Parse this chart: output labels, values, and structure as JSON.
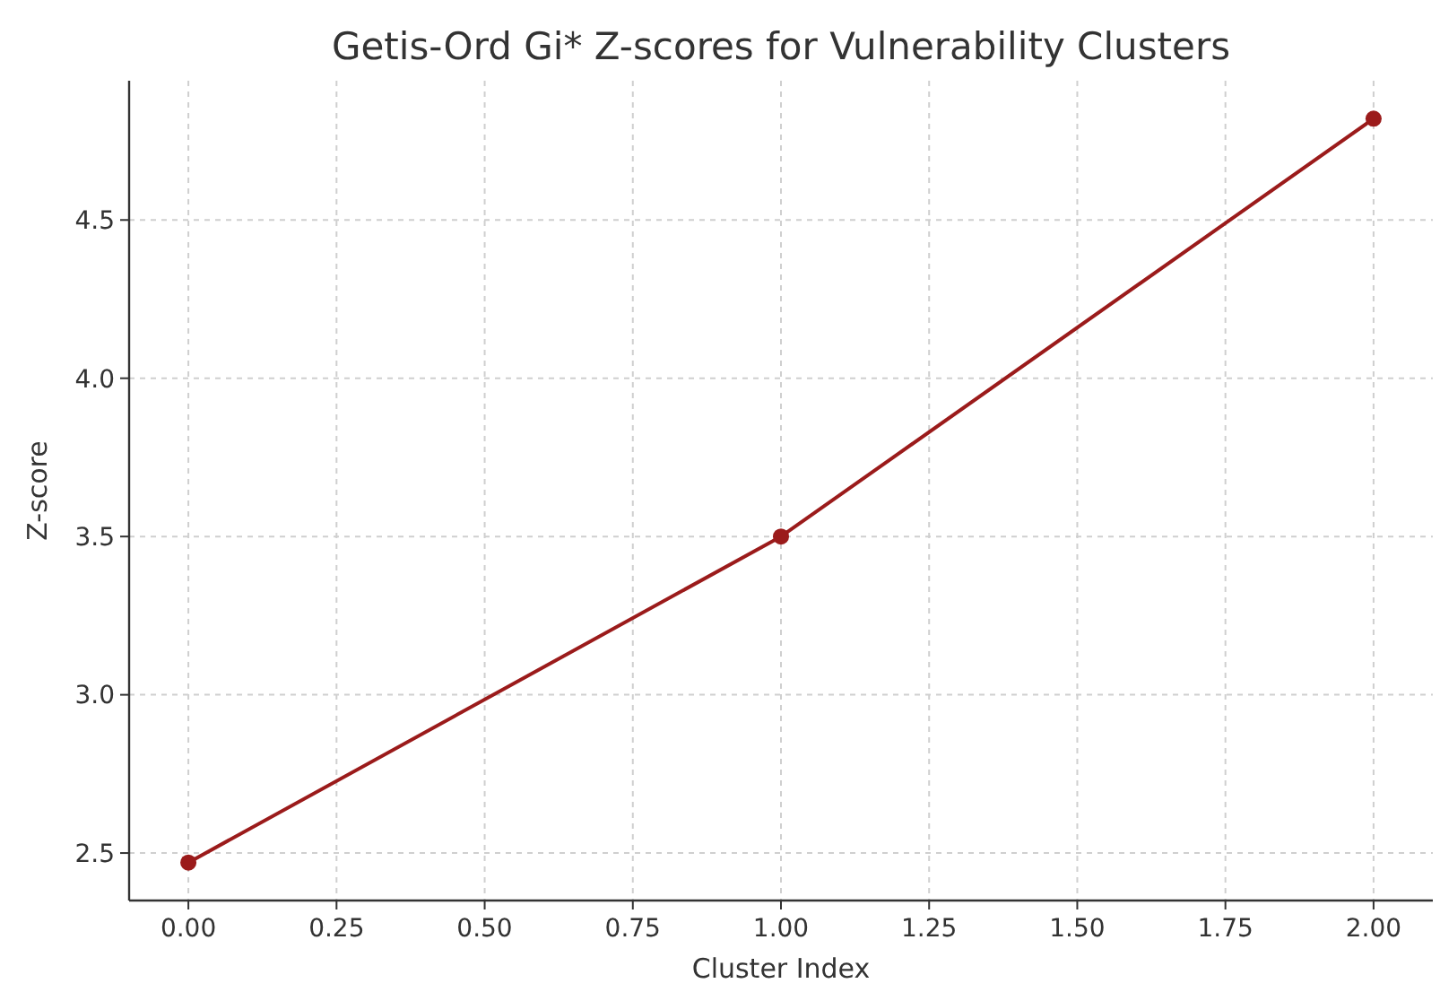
{
  "chart_data": {
    "type": "line",
    "title": "Getis-Ord Gi* Z-scores for Vulnerability Clusters",
    "xlabel": "Cluster Index",
    "ylabel": "Z-score",
    "x": [
      0,
      1,
      2
    ],
    "series": [
      {
        "color": "#9b1b1b",
        "values": [
          2.47,
          3.5,
          4.82
        ]
      }
    ],
    "xlim": [
      -0.1,
      2.1
    ],
    "xticks": [
      {
        "value": 0,
        "label": "0.00"
      },
      {
        "value": 0.25,
        "label": "0.25"
      },
      {
        "value": 0.5,
        "label": "0.50"
      },
      {
        "value": 0.75,
        "label": "0.75"
      },
      {
        "value": 1,
        "label": "1.00"
      },
      {
        "value": 1.25,
        "label": "1.25"
      },
      {
        "value": 1.5,
        "label": "1.50"
      },
      {
        "value": 1.75,
        "label": "1.75"
      },
      {
        "value": 2,
        "label": "2.00"
      }
    ],
    "ylim": [
      2.35,
      4.94
    ],
    "yticks": [
      {
        "value": 2.5,
        "label": "2.5"
      },
      {
        "value": 3,
        "label": "3.0"
      },
      {
        "value": 3.5,
        "label": "3.5"
      },
      {
        "value": 4,
        "label": "4.0"
      },
      {
        "value": 4.5,
        "label": "4.5"
      }
    ],
    "grid": true,
    "marker": "circle",
    "line_style": "solid"
  }
}
